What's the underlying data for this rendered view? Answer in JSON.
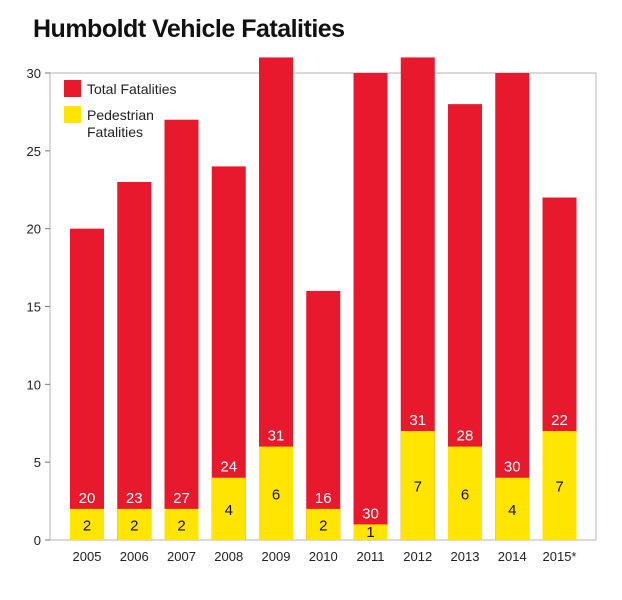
{
  "chart_data": {
    "type": "bar",
    "title": "Humboldt Vehicle Fatalities",
    "xlabel": "",
    "ylabel": "",
    "ylim": [
      0,
      30
    ],
    "yticks": [
      0,
      5,
      10,
      15,
      20,
      25,
      30
    ],
    "categories": [
      "2005",
      "2006",
      "2007",
      "2008",
      "2009",
      "2010",
      "2011",
      "2012",
      "2013",
      "2014",
      "2015*"
    ],
    "series": [
      {
        "name": "Total Fatalities",
        "color": "#e8192c",
        "values": [
          20,
          23,
          27,
          24,
          31,
          16,
          30,
          31,
          28,
          30,
          22
        ]
      },
      {
        "name": "Pedestrian Fatalities",
        "color": "#ffe500",
        "values": [
          2,
          2,
          2,
          4,
          6,
          2,
          1,
          7,
          6,
          4,
          7
        ]
      }
    ],
    "legend": {
      "position": "top-left",
      "entries": [
        {
          "label_lines": [
            "Total Fatalities"
          ],
          "color": "#e8192c"
        },
        {
          "label_lines": [
            "Pedestrian",
            "Fatalities"
          ],
          "color": "#ffe500"
        }
      ]
    },
    "grid": false,
    "overlaid": true
  }
}
